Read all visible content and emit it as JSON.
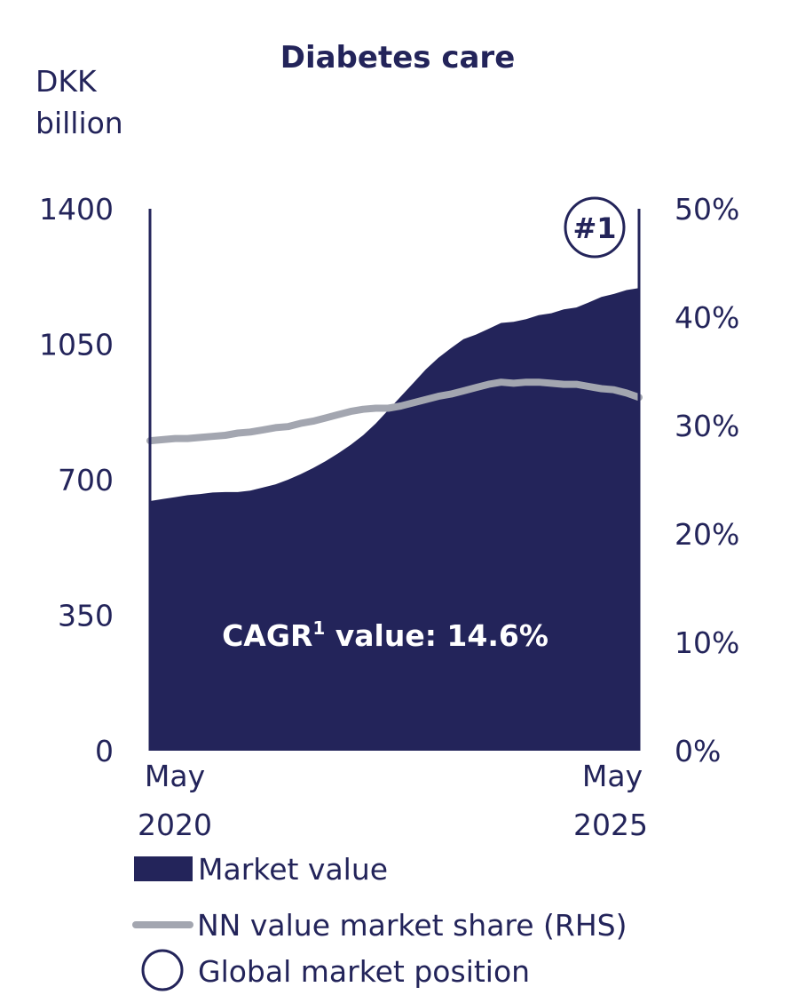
{
  "chart_data": {
    "type": "area",
    "title": "Diabetes care",
    "ylabel": [
      "DKK",
      "billion"
    ],
    "ylim": [
      0,
      1400
    ],
    "y_ticks": [
      "1400",
      "1050",
      "700",
      "350",
      "0"
    ],
    "y2lim": [
      0,
      50
    ],
    "y2_ticks": [
      "50%",
      "40%",
      "30%",
      "20%",
      "10%",
      "0%"
    ],
    "x_start": [
      "May",
      "2020"
    ],
    "x_end": [
      "May",
      "2025"
    ],
    "series": [
      {
        "name": "Market value",
        "axis": "left",
        "color": "#23245a",
        "points": [
          [
            0,
            645
          ],
          [
            1,
            650
          ],
          [
            2,
            655
          ],
          [
            3,
            660
          ],
          [
            4,
            663
          ],
          [
            5,
            667
          ],
          [
            6,
            668
          ],
          [
            7,
            668
          ],
          [
            8,
            672
          ],
          [
            9,
            680
          ],
          [
            10,
            688
          ],
          [
            11,
            700
          ],
          [
            12,
            714
          ],
          [
            13,
            730
          ],
          [
            14,
            748
          ],
          [
            15,
            768
          ],
          [
            16,
            790
          ],
          [
            17,
            815
          ],
          [
            18,
            845
          ],
          [
            19,
            880
          ],
          [
            20,
            915
          ],
          [
            21,
            950
          ],
          [
            22,
            985
          ],
          [
            23,
            1015
          ],
          [
            24,
            1040
          ],
          [
            25,
            1063
          ],
          [
            26,
            1075
          ],
          [
            27,
            1090
          ],
          [
            28,
            1105
          ],
          [
            29,
            1108
          ],
          [
            30,
            1115
          ],
          [
            31,
            1125
          ],
          [
            32,
            1130
          ],
          [
            33,
            1140
          ],
          [
            34,
            1145
          ],
          [
            35,
            1158
          ],
          [
            36,
            1172
          ],
          [
            37,
            1180
          ],
          [
            38,
            1190
          ],
          [
            39,
            1195
          ]
        ]
      },
      {
        "name": "NN value market share (RHS)",
        "axis": "right",
        "color": "#a3a6b0",
        "points": [
          [
            0,
            28.6
          ],
          [
            1,
            28.7
          ],
          [
            2,
            28.8
          ],
          [
            3,
            28.8
          ],
          [
            4,
            28.9
          ],
          [
            5,
            29.0
          ],
          [
            6,
            29.1
          ],
          [
            7,
            29.3
          ],
          [
            8,
            29.4
          ],
          [
            9,
            29.6
          ],
          [
            10,
            29.8
          ],
          [
            11,
            29.9
          ],
          [
            12,
            30.2
          ],
          [
            13,
            30.4
          ],
          [
            14,
            30.7
          ],
          [
            15,
            31.0
          ],
          [
            16,
            31.3
          ],
          [
            17,
            31.5
          ],
          [
            18,
            31.6
          ],
          [
            19,
            31.6
          ],
          [
            20,
            31.8
          ],
          [
            21,
            32.1
          ],
          [
            22,
            32.4
          ],
          [
            23,
            32.7
          ],
          [
            24,
            32.9
          ],
          [
            25,
            33.2
          ],
          [
            26,
            33.5
          ],
          [
            27,
            33.8
          ],
          [
            28,
            34.0
          ],
          [
            29,
            33.9
          ],
          [
            30,
            34.0
          ],
          [
            31,
            34.0
          ],
          [
            32,
            33.9
          ],
          [
            33,
            33.8
          ],
          [
            34,
            33.8
          ],
          [
            35,
            33.6
          ],
          [
            36,
            33.4
          ],
          [
            37,
            33.3
          ],
          [
            38,
            33.0
          ],
          [
            39,
            32.6
          ]
        ]
      }
    ],
    "annotation": {
      "prefix": "CAGR",
      "superscript": "1",
      "suffix": " value: 14.6%"
    },
    "market_position": "#1",
    "legend": [
      {
        "label": "Market value",
        "type": "box"
      },
      {
        "label": "NN value market share (RHS)",
        "type": "line"
      },
      {
        "label": "Global market position",
        "type": "circle"
      }
    ]
  }
}
